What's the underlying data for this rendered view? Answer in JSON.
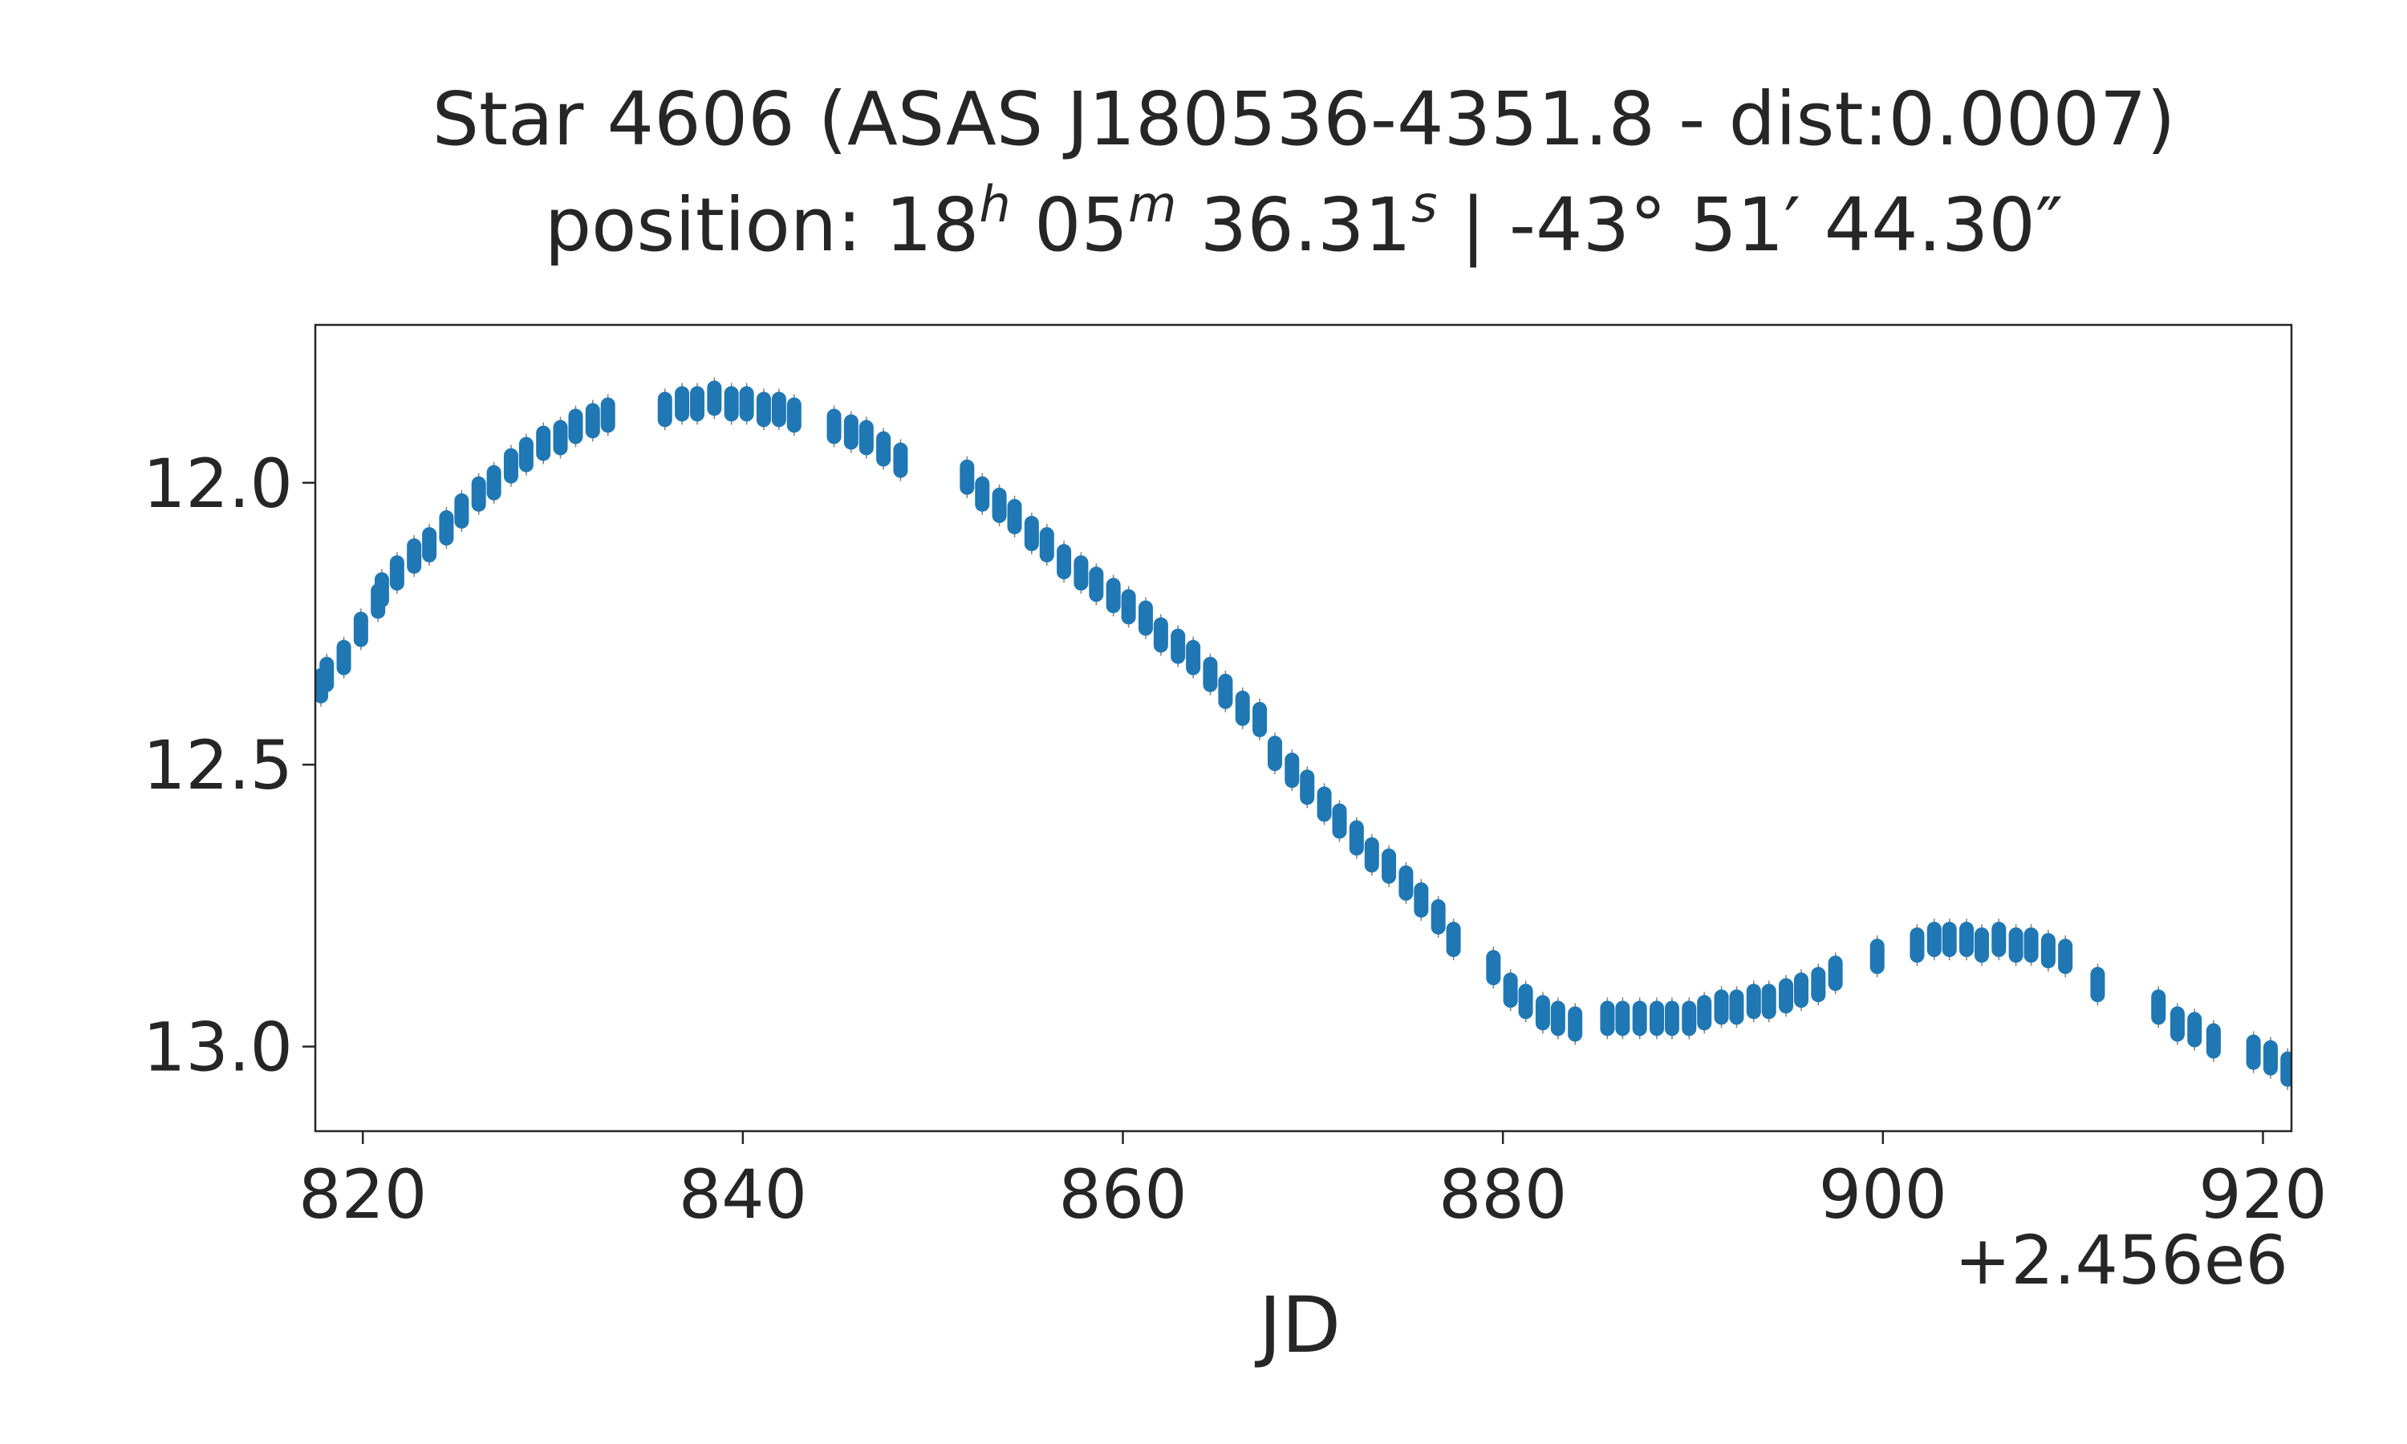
{
  "chart_data": {
    "type": "scatter",
    "title_line1": "Star 4606 (ASAS J180536-4351.8 - dist:0.0007)",
    "title_line2": {
      "prefix": "position: ",
      "ra_h": "18",
      "ra_h_unit": "h",
      "ra_m": " 05",
      "ra_m_unit": "m",
      "ra_s": " 36.31",
      "ra_s_unit": "s",
      "dec": " | -43° 51′ 44.30″"
    },
    "xlabel": "JD",
    "x_offset_label": "+2.456e6",
    "x_offset": 2456000,
    "xlim": [
      817.5,
      921.5
    ],
    "ylim": [
      13.15,
      11.72
    ],
    "y_inverted": true,
    "xticks": [
      820,
      840,
      860,
      880,
      900,
      920
    ],
    "xtick_labels": [
      "820",
      "840",
      "860",
      "880",
      "900",
      "920"
    ],
    "yticks": [
      12.0,
      12.5,
      13.0
    ],
    "ytick_labels": [
      "12.0",
      "12.5",
      "13.0"
    ],
    "grid": false,
    "marker_color": "#1f77b4",
    "errorbar_color": "#7f7f7f",
    "series": [
      {
        "x": [
          817.8,
          818.1,
          819.0,
          819.9,
          820.8,
          821.0,
          821.8,
          822.7,
          823.5,
          824.4,
          825.2,
          826.1,
          826.9,
          827.8,
          828.6,
          829.5,
          830.4,
          831.2,
          832.1,
          832.9,
          835.9,
          836.8,
          837.6,
          838.5,
          839.4,
          840.2,
          841.1,
          841.9,
          842.7,
          844.8,
          845.7,
          846.5,
          847.4,
          848.3,
          851.8,
          852.6,
          853.5,
          854.3,
          855.2,
          856.0,
          856.9,
          857.8,
          858.6,
          859.5,
          860.3,
          861.2,
          862.0,
          862.9,
          863.7,
          864.6,
          865.4,
          866.3,
          867.2,
          868.0,
          868.9,
          869.7,
          870.6,
          871.4,
          872.3,
          873.1,
          874.0,
          874.9,
          875.7,
          876.6,
          877.4,
          879.5,
          880.4,
          881.2,
          882.1,
          882.9,
          883.8,
          885.5,
          886.3,
          887.2,
          888.1,
          888.9,
          889.8,
          890.6,
          891.5,
          892.3,
          893.2,
          894.0,
          894.9,
          895.7,
          896.6,
          897.5,
          899.7,
          901.8,
          902.7,
          903.5,
          904.4,
          905.2,
          906.1,
          907.0,
          907.8,
          908.7,
          909.6,
          911.3,
          914.5,
          915.5,
          916.4,
          917.4,
          919.5,
          920.4,
          921.3
        ],
        "y": [
          12.36,
          12.34,
          12.31,
          12.26,
          12.21,
          12.19,
          12.16,
          12.13,
          12.11,
          12.08,
          12.05,
          12.02,
          12.0,
          11.97,
          11.95,
          11.93,
          11.92,
          11.9,
          11.89,
          11.88,
          11.87,
          11.86,
          11.86,
          11.85,
          11.86,
          11.86,
          11.87,
          11.87,
          11.88,
          11.9,
          11.91,
          11.92,
          11.94,
          11.96,
          11.99,
          12.02,
          12.04,
          12.06,
          12.09,
          12.11,
          12.14,
          12.16,
          12.18,
          12.2,
          12.22,
          12.24,
          12.27,
          12.29,
          12.31,
          12.34,
          12.37,
          12.4,
          12.42,
          12.48,
          12.51,
          12.54,
          12.57,
          12.6,
          12.63,
          12.66,
          12.68,
          12.71,
          12.74,
          12.77,
          12.81,
          12.86,
          12.9,
          12.92,
          12.94,
          12.95,
          12.96,
          12.95,
          12.95,
          12.95,
          12.95,
          12.95,
          12.95,
          12.94,
          12.93,
          12.93,
          12.92,
          12.92,
          12.91,
          12.9,
          12.89,
          12.87,
          12.84,
          12.82,
          12.81,
          12.81,
          12.81,
          12.82,
          12.81,
          12.82,
          12.82,
          12.83,
          12.84,
          12.89,
          12.93,
          12.96,
          12.97,
          12.99,
          13.01,
          13.02,
          13.04
        ]
      }
    ]
  }
}
